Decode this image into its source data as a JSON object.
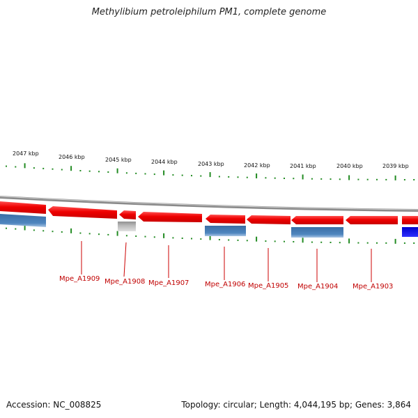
{
  "title": "Methylibium petroleiphilum PM1, complete genome",
  "footer": {
    "accession": "Accession: NC_008825",
    "summary": "Topology: circular; Length: 4,044,195 bp; Genes: 3,864"
  },
  "colors": {
    "backbone": "#8a8a8a",
    "gene_forward": "#ee0000",
    "feature_steel": "#4a7fb5",
    "feature_grey": "#b0b0b0",
    "feature_blue": "#0000ee",
    "tick": "#228b22",
    "label": "#c00000"
  },
  "scale": {
    "labels": [
      "2047 kbp",
      "2046 kbp",
      "2045 kbp",
      "2044 kbp",
      "2043 kbp",
      "2042 kbp",
      "2041 kbp",
      "2040 kbp",
      "2039 kbp"
    ]
  },
  "genes": [
    {
      "name": "Mpe_A1909"
    },
    {
      "name": "Mpe_A1908"
    },
    {
      "name": "Mpe_A1907"
    },
    {
      "name": "Mpe_A1906"
    },
    {
      "name": "Mpe_A1905"
    },
    {
      "name": "Mpe_A1904"
    },
    {
      "name": "Mpe_A1903"
    }
  ]
}
